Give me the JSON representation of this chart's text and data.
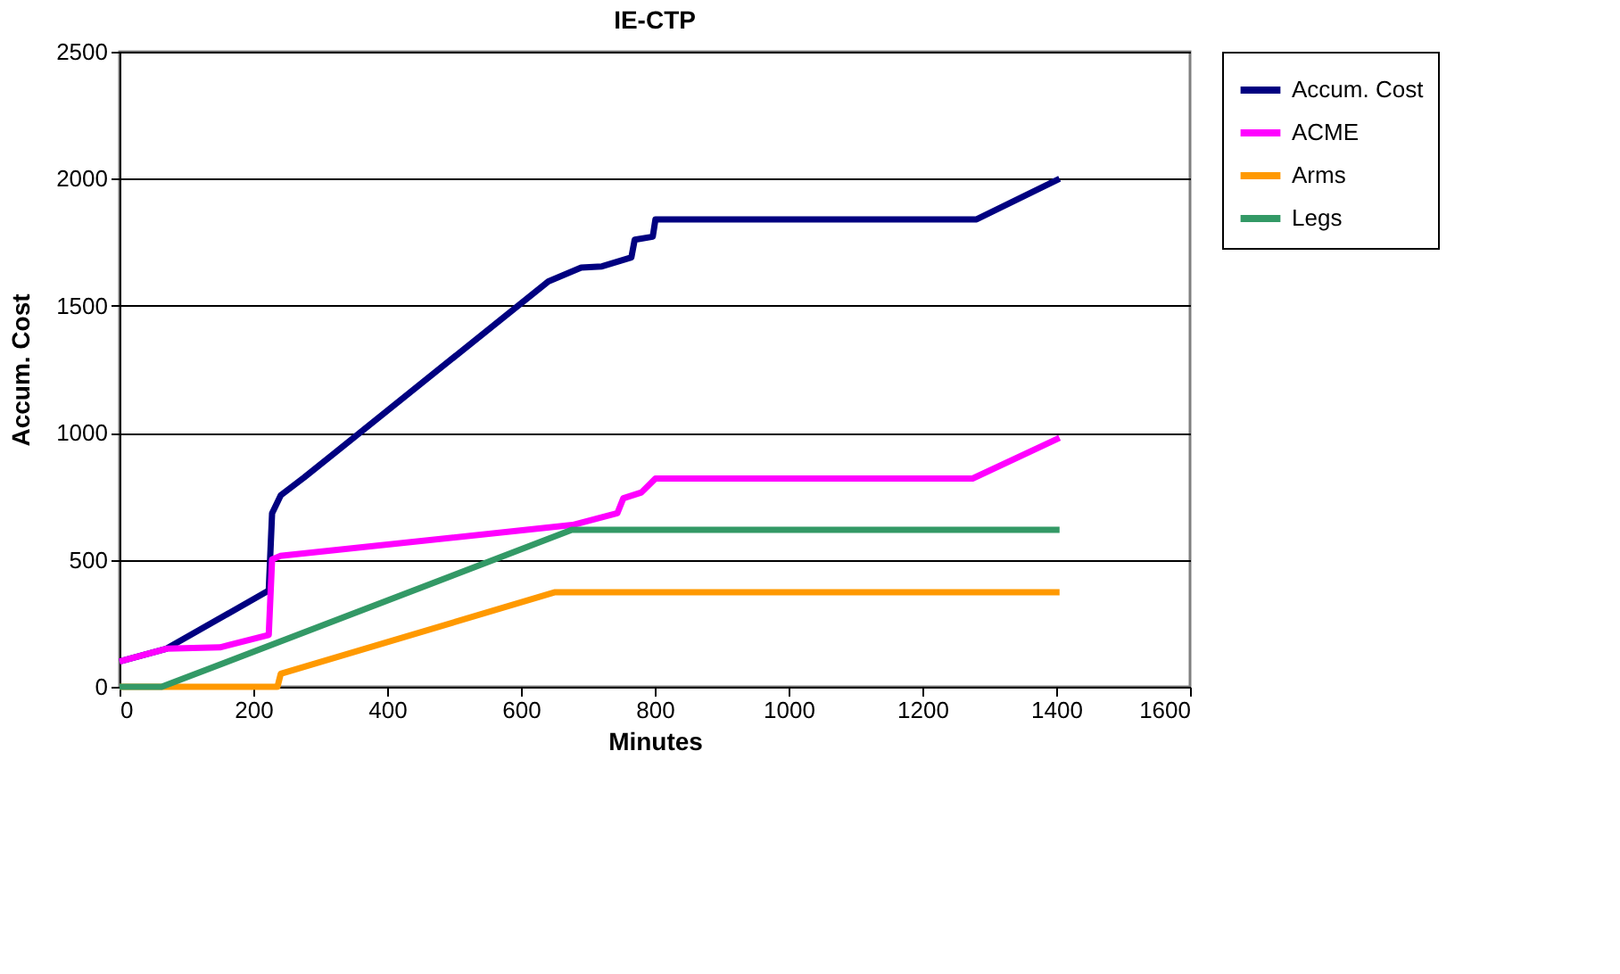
{
  "chart_data": {
    "type": "line",
    "title": "IE-CTP",
    "xlabel": "Minutes",
    "ylabel": "Accum. Cost",
    "xlim": [
      0,
      1600
    ],
    "xticks": [
      0,
      200,
      400,
      600,
      800,
      1000,
      1200,
      1400,
      1600
    ],
    "ylim": [
      0,
      2500
    ],
    "yticks": [
      0,
      500,
      1000,
      1500,
      2000,
      2500
    ],
    "grid": "y",
    "legend": "right",
    "marker": "none",
    "line_style": "solid",
    "series": [
      {
        "name": "Accum. Cost",
        "color": "#000080",
        "x": [
          0,
          70,
          223,
          228,
          241,
          276,
          641,
          690,
          721,
          765,
          770,
          797,
          801,
          819,
          1281,
          1405
        ],
        "values": [
          100,
          150,
          379,
          683,
          754,
          824,
          1596,
          1650,
          1655,
          1690,
          1760,
          1772,
          1840,
          1840,
          1840,
          2000
        ]
      },
      {
        "name": "ACME",
        "color": "#ff00ff",
        "x": [
          0,
          70,
          150,
          223,
          228,
          240,
          677,
          744,
          753,
          780,
          801,
          1275,
          1405
        ],
        "values": [
          100,
          150,
          155,
          204,
          501,
          515,
          637,
          683,
          742,
          765,
          820,
          820,
          980
        ]
      },
      {
        "name": "Arms",
        "color": "#ff9900",
        "x": [
          0,
          236,
          241,
          650,
          1405
        ],
        "values": [
          0,
          0,
          51,
          372,
          372
        ]
      },
      {
        "name": "Legs",
        "color": "#339966",
        "x": [
          0,
          63,
          676,
          1405
        ],
        "values": [
          0,
          0,
          618,
          618
        ]
      }
    ]
  }
}
